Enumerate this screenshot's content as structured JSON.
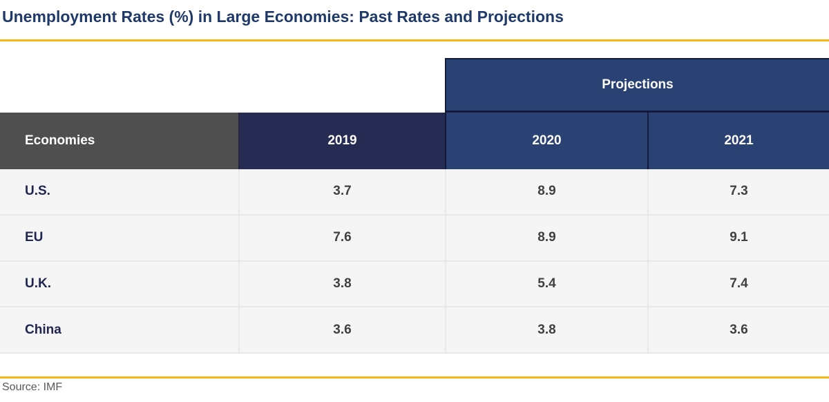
{
  "page": {
    "title": "Unemployment Rates (%) in Large Economies: Past Rates and Projections",
    "source": "Source: IMF"
  },
  "table": {
    "projections_label": "Projections",
    "columns": {
      "economies": "Economies",
      "y2019": "2019",
      "y2020": "2020",
      "y2021": "2021"
    },
    "rows": [
      {
        "economy": "U.S.",
        "y2019": "3.7",
        "y2020": "8.9",
        "y2021": "7.3"
      },
      {
        "economy": "EU",
        "y2019": "7.6",
        "y2020": "8.9",
        "y2021": "9.1"
      },
      {
        "economy": "U.K.",
        "y2019": "3.8",
        "y2020": "5.4",
        "y2021": "7.4"
      },
      {
        "economy": "China",
        "y2019": "3.6",
        "y2020": "3.8",
        "y2021": "3.6"
      }
    ]
  },
  "colors": {
    "title_navy": "#1F3969",
    "gold_rule": "#FBB416",
    "economies_header_gray": "#4F4F4F",
    "year_2019_indigo": "#262B53",
    "projections_navy": "#2A4173",
    "dark_border_navy": "#131A3C",
    "row_background": "#F5F5F6",
    "row_label_navy": "#20254E",
    "value_gray": "#404040",
    "source_gray": "#595959"
  },
  "chart_data": {
    "type": "table",
    "title": "Unemployment Rates (%) in Large Economies: Past Rates and Projections",
    "columns": [
      "Economies",
      "2019",
      "2020",
      "2021"
    ],
    "column_groups": [
      {
        "label": "Projections",
        "columns": [
          "2020",
          "2021"
        ]
      }
    ],
    "rows": [
      [
        "U.S.",
        3.7,
        8.9,
        7.3
      ],
      [
        "EU",
        7.6,
        8.9,
        9.1
      ],
      [
        "U.K.",
        3.8,
        5.4,
        7.4
      ],
      [
        "China",
        3.6,
        3.8,
        3.6
      ]
    ],
    "units": "percent",
    "source": "Source: IMF"
  }
}
